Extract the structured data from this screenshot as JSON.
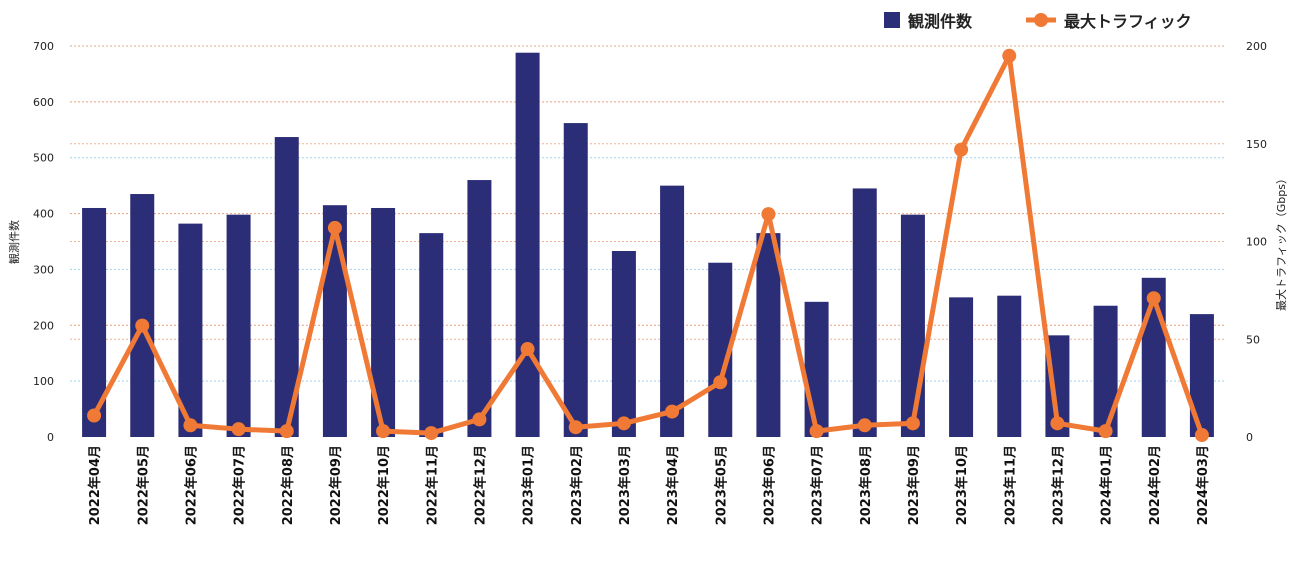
{
  "chart_data": {
    "type": "bar+line",
    "title": "",
    "categories": [
      "2022年04月",
      "2022年05月",
      "2022年06月",
      "2022年07月",
      "2022年08月",
      "2022年09月",
      "2022年10月",
      "2022年11月",
      "2022年12月",
      "2023年01月",
      "2023年02月",
      "2023年03月",
      "2023年04月",
      "2023年05月",
      "2023年06月",
      "2023年07月",
      "2023年08月",
      "2023年09月",
      "2023年10月",
      "2023年11月",
      "2023年12月",
      "2024年01月",
      "2024年02月",
      "2024年03月"
    ],
    "series": [
      {
        "name": "観測件数",
        "type": "bar",
        "axis": "left",
        "color": "#2b2e77",
        "values": [
          410,
          435,
          382,
          398,
          537,
          415,
          410,
          365,
          460,
          688,
          562,
          333,
          450,
          312,
          365,
          242,
          445,
          398,
          250,
          253,
          182,
          235,
          285,
          220
        ]
      },
      {
        "name": "最大トラフィック",
        "type": "line",
        "axis": "right",
        "color": "#f07a35",
        "values": [
          11,
          57,
          6,
          4,
          3,
          107,
          3,
          2,
          9,
          45,
          5,
          7,
          13,
          28,
          114,
          3,
          6,
          7,
          147,
          195,
          7,
          3,
          71,
          1
        ]
      }
    ],
    "left_axis": {
      "label": "観測件数",
      "min": 0,
      "max": 700,
      "ticks": [
        "0",
        "100",
        "200",
        "300",
        "400",
        "500",
        "600",
        "700"
      ]
    },
    "right_axis": {
      "label": "最大トラフィック（Gbps）",
      "min": 0,
      "max": 200,
      "ticks": [
        "0",
        "50",
        "100",
        "150",
        "200"
      ]
    },
    "legend": {
      "position": "top-right",
      "items": [
        {
          "label": "観測件数",
          "shape": "square"
        },
        {
          "label": "最大トラフィック",
          "shape": "line-dot"
        }
      ]
    },
    "grid": true
  }
}
